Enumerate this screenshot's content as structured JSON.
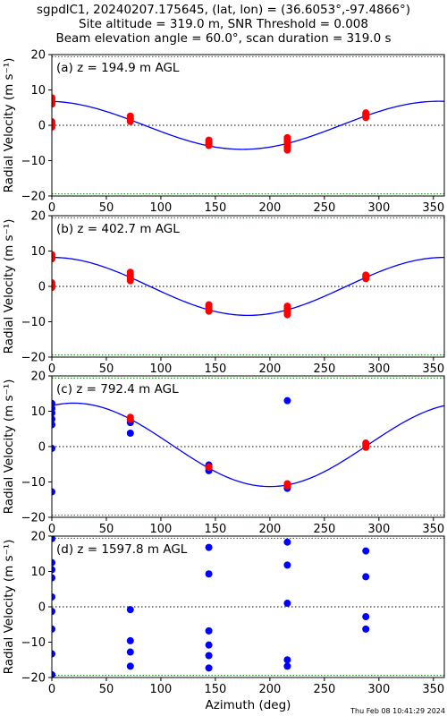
{
  "title_lines": [
    "sgpdlC1, 20240207.175645, (lat, lon) = (36.6053°,-97.4866°)",
    "Site altitude = 319.0 m, SNR Threshold = 0.008",
    "Beam elevation angle = 60.0°, scan duration = 319.0 s"
  ],
  "timestamp": "Thu Feb 08 10:41:29 2024",
  "colors": {
    "fit": "#0000ff",
    "good": "#ff0000",
    "bad": "#0000ff",
    "limit": "#008000",
    "zero": "#000000"
  },
  "chart_data": [
    {
      "type": "scatter",
      "panel_label": "(a) z = 194.9 m AGL",
      "xlabel": "",
      "ylabel": "Radial Velocity (m s⁻¹)",
      "xlim": [
        0,
        360
      ],
      "ylim": [
        -20,
        20
      ],
      "xticks": [
        "0",
        "50",
        "100",
        "150",
        "200",
        "250",
        "300",
        "350"
      ],
      "yticks": [
        "20",
        "10",
        "0",
        "−10",
        "−20"
      ],
      "zero_line": 0,
      "limit_lines": [
        19.4,
        -19.4
      ],
      "fit": {
        "amplitude": 6.8,
        "phase_deg": 355,
        "offset": 0
      },
      "series": [
        {
          "color": "red",
          "points": [
            [
              0,
              7.8
            ],
            [
              0,
              7.2
            ],
            [
              0,
              6.5
            ],
            [
              0,
              6.0
            ],
            [
              0,
              1.0
            ],
            [
              0,
              0.3
            ],
            [
              0,
              -0.5
            ],
            [
              72,
              2.6
            ],
            [
              72,
              2.0
            ],
            [
              72,
              1.6
            ],
            [
              72,
              1.1
            ],
            [
              144,
              -4.2
            ],
            [
              144,
              -4.8
            ],
            [
              144,
              -5.2
            ],
            [
              144,
              -5.7
            ],
            [
              216,
              -3.5
            ],
            [
              216,
              -4.0
            ],
            [
              216,
              -4.6
            ],
            [
              216,
              -5.2
            ],
            [
              216,
              -5.8
            ],
            [
              216,
              -6.4
            ],
            [
              216,
              -7.0
            ],
            [
              288,
              3.5
            ],
            [
              288,
              3.0
            ],
            [
              288,
              2.6
            ],
            [
              288,
              2.2
            ]
          ]
        }
      ]
    },
    {
      "type": "scatter",
      "panel_label": "(b) z = 402.7 m AGL",
      "xlabel": "",
      "ylabel": "Radial Velocity (m s⁻¹)",
      "xlim": [
        0,
        360
      ],
      "ylim": [
        -20,
        20
      ],
      "xticks": [
        "0",
        "50",
        "100",
        "150",
        "200",
        "250",
        "300",
        "350"
      ],
      "yticks": [
        "20",
        "10",
        "0",
        "−10",
        "−20"
      ],
      "zero_line": 0,
      "limit_lines": [
        19.4,
        -19.4
      ],
      "fit": {
        "amplitude": 8.2,
        "phase_deg": 0,
        "offset": 0
      },
      "series": [
        {
          "color": "red",
          "points": [
            [
              0,
              9.0
            ],
            [
              0,
              8.4
            ],
            [
              0,
              7.8
            ],
            [
              0,
              1.0
            ],
            [
              0,
              0.3
            ],
            [
              0,
              -0.3
            ],
            [
              72,
              4.0
            ],
            [
              72,
              3.4
            ],
            [
              72,
              2.8
            ],
            [
              72,
              2.2
            ],
            [
              72,
              1.6
            ],
            [
              144,
              -5.2
            ],
            [
              144,
              -5.8
            ],
            [
              144,
              -6.4
            ],
            [
              144,
              -7.0
            ],
            [
              216,
              -5.6
            ],
            [
              216,
              -6.2
            ],
            [
              216,
              -6.8
            ],
            [
              216,
              -7.4
            ],
            [
              216,
              -8.0
            ],
            [
              288,
              3.2
            ],
            [
              288,
              2.7
            ],
            [
              288,
              2.2
            ]
          ]
        }
      ]
    },
    {
      "type": "scatter",
      "panel_label": "(c) z = 792.4 m AGL",
      "xlabel": "",
      "ylabel": "Radial Velocity (m s⁻¹)",
      "xlim": [
        0,
        360
      ],
      "ylim": [
        -20,
        20
      ],
      "xticks": [
        "0",
        "50",
        "100",
        "150",
        "200",
        "250",
        "300",
        "350"
      ],
      "yticks": [
        "20",
        "10",
        "0",
        "−10",
        "−20"
      ],
      "zero_line": 0,
      "limit_lines": [
        19.4,
        -19.4
      ],
      "fit": {
        "amplitude": 11.8,
        "phase_deg": 20,
        "offset": 0.5
      },
      "series": [
        {
          "color": "blue",
          "points": [
            [
              0,
              12.2
            ],
            [
              0,
              10.8
            ],
            [
              0,
              9.5
            ],
            [
              0,
              7.8
            ],
            [
              0,
              6.2
            ],
            [
              0,
              -0.5
            ],
            [
              0,
              -12.8
            ],
            [
              72,
              6.8
            ],
            [
              72,
              3.8
            ],
            [
              144,
              -5.2
            ],
            [
              144,
              -6.0
            ],
            [
              144,
              -6.8
            ],
            [
              216,
              13.0
            ],
            [
              216,
              -11.3
            ],
            [
              216,
              -11.8
            ]
          ]
        },
        {
          "color": "red",
          "points": [
            [
              72,
              8.3
            ],
            [
              72,
              7.7
            ],
            [
              144,
              -5.8
            ],
            [
              216,
              -10.5
            ],
            [
              216,
              -11.1
            ],
            [
              288,
              1.0
            ],
            [
              288,
              0.4
            ],
            [
              288,
              -0.2
            ]
          ]
        }
      ]
    },
    {
      "type": "scatter",
      "panel_label": "(d) z = 1597.8 m AGL",
      "xlabel": "Azimuth (deg)",
      "ylabel": "Radial Velocity (m s⁻¹)",
      "xlim": [
        0,
        360
      ],
      "ylim": [
        -20,
        20
      ],
      "xticks": [
        "0",
        "50",
        "100",
        "150",
        "200",
        "250",
        "300",
        "350"
      ],
      "yticks": [
        "20",
        "10",
        "0",
        "−10",
        "−20"
      ],
      "zero_line": 0,
      "limit_lines": [
        19.4,
        -19.4
      ],
      "fit": null,
      "series": [
        {
          "color": "blue",
          "points": [
            [
              0,
              19.3
            ],
            [
              0,
              12.5
            ],
            [
              0,
              10.5
            ],
            [
              0,
              8.2
            ],
            [
              0,
              2.8
            ],
            [
              0,
              -1.3
            ],
            [
              0,
              -6.3
            ],
            [
              0,
              -13.3
            ],
            [
              0,
              -19.2
            ],
            [
              72,
              -0.8
            ],
            [
              72,
              -9.6
            ],
            [
              72,
              -12.8
            ],
            [
              72,
              -16.8
            ],
            [
              144,
              16.8
            ],
            [
              144,
              9.3
            ],
            [
              144,
              -6.8
            ],
            [
              144,
              -10.8
            ],
            [
              144,
              -13.8
            ],
            [
              144,
              -17.3
            ],
            [
              216,
              18.3
            ],
            [
              216,
              11.8
            ],
            [
              216,
              1.0
            ],
            [
              216,
              -15.0
            ],
            [
              216,
              -16.8
            ],
            [
              288,
              15.8
            ],
            [
              288,
              8.5
            ],
            [
              288,
              -2.8
            ],
            [
              288,
              -6.3
            ]
          ]
        }
      ]
    }
  ]
}
